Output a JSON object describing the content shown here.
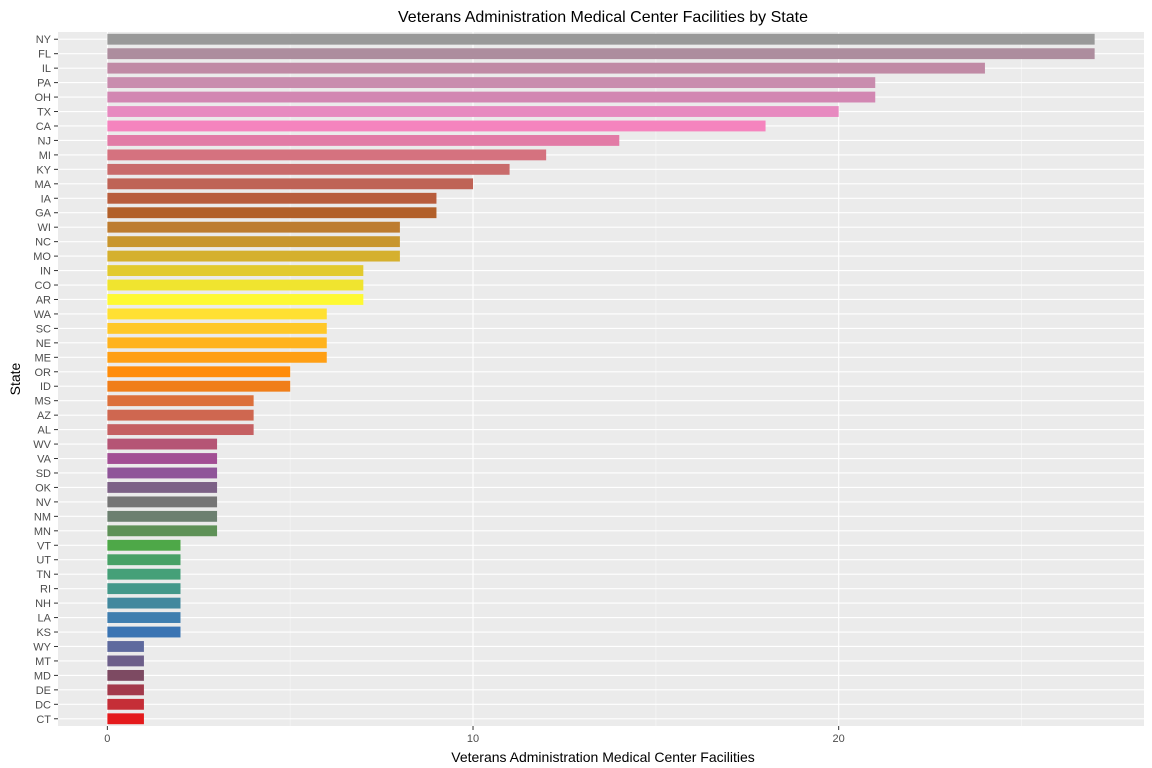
{
  "chart_data": {
    "type": "bar",
    "orientation": "horizontal",
    "title": "Veterans Administration Medical Center Facilities by State",
    "xlabel": "Veterans Administration Medical Center Facilities",
    "ylabel": "State",
    "xlim": [
      -1.35,
      28.35
    ],
    "xticks": [
      0,
      10,
      20
    ],
    "x_minor_gridlines": [
      5,
      15,
      25
    ],
    "grid": true,
    "background": "#EBEBEB",
    "categories": [
      "NY",
      "FL",
      "IL",
      "PA",
      "OH",
      "TX",
      "CA",
      "NJ",
      "MI",
      "KY",
      "MA",
      "IA",
      "GA",
      "WI",
      "NC",
      "MO",
      "IN",
      "CO",
      "AR",
      "WA",
      "SC",
      "NE",
      "ME",
      "OR",
      "ID",
      "MS",
      "AZ",
      "AL",
      "WV",
      "VA",
      "SD",
      "OK",
      "NV",
      "NM",
      "MN",
      "VT",
      "UT",
      "TN",
      "RI",
      "NH",
      "LA",
      "KS",
      "WY",
      "MT",
      "MD",
      "DE",
      "DC",
      "CT"
    ],
    "values": [
      27,
      27,
      24,
      21,
      21,
      20,
      18,
      14,
      12,
      11,
      10,
      9,
      9,
      8,
      8,
      8,
      7,
      7,
      7,
      6,
      6,
      6,
      6,
      5,
      5,
      4,
      4,
      4,
      3,
      3,
      3,
      3,
      3,
      3,
      3,
      2,
      2,
      2,
      2,
      2,
      2,
      2,
      1,
      1,
      1,
      1,
      1,
      1
    ],
    "colors": [
      "#999999",
      "#AD8D9E",
      "#C08AA5",
      "#C98CAE",
      "#D287B2",
      "#E78AC0",
      "#F584BE",
      "#E27BA6",
      "#D5727F",
      "#C96B6B",
      "#BF6356",
      "#B85D3D",
      "#B2602A",
      "#BD7C30",
      "#C8962E",
      "#D5B02E",
      "#E2CA2E",
      "#F0E42F",
      "#FEF932",
      "#FFE032",
      "#FFC828",
      "#FFB31E",
      "#FF9F14",
      "#FF8C0A",
      "#F07E19",
      "#DC703B",
      "#CF6750",
      "#C56062",
      "#B55575",
      "#A24E94",
      "#8F5599",
      "#7C6186",
      "#757575",
      "#6C8070",
      "#5E9157",
      "#4EA848",
      "#48A166",
      "#45A078",
      "#44988A",
      "#42889E",
      "#3F7EAF",
      "#3A74B3",
      "#5E6A9E",
      "#6D5F8A",
      "#7D4A62",
      "#A33A4B",
      "#C52E37",
      "#E41A1C"
    ]
  }
}
